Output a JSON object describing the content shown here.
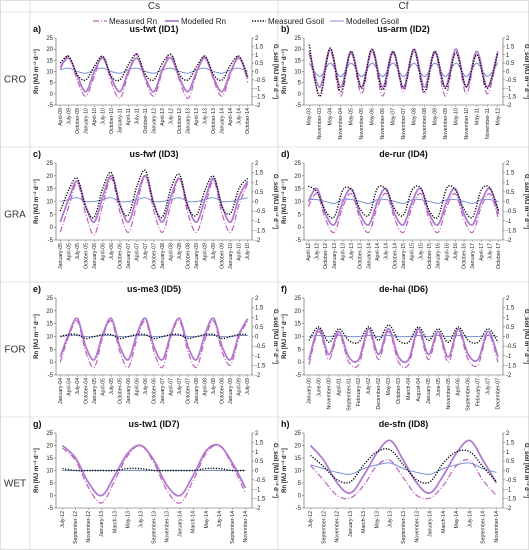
{
  "headers": {
    "cs": "Cs",
    "cf": "Cf"
  },
  "rows": [
    "CRO",
    "GRA",
    "FOR",
    "WET"
  ],
  "legend": [
    {
      "label": "Measured Rn",
      "color": "#c060c0",
      "style": "dashdot",
      "width": 1.2
    },
    {
      "label": "Modelled Rn",
      "color": "#b07cd0",
      "style": "solid",
      "width": 1.8
    },
    {
      "label": "Measured Gsoil",
      "color": "#000000",
      "style": "dotted",
      "width": 1.4
    },
    {
      "label": "Modelled Gsoil",
      "color": "#7a93d6",
      "style": "solid",
      "width": 1.0
    }
  ],
  "axes": {
    "left_label": "Rn [MJ m⁻² d⁻¹]",
    "right_label": "G_soil [MJ m⁻² d⁻¹]",
    "left_ylim": [
      -5,
      25
    ],
    "left_ticks": [
      "-5",
      "0",
      "5",
      "10",
      "15",
      "20",
      "25"
    ],
    "right_ylim": [
      -2,
      2
    ],
    "right_ticks": [
      "-2",
      "-1.5",
      "-1",
      "-0.5",
      "0",
      "0.5",
      "1",
      "1.5",
      "2"
    ]
  },
  "chart_data": [
    {
      "letter": "a)",
      "site": "us-twt (ID1)",
      "type": "line",
      "x_labels": [
        "April-09",
        "July-09",
        "October-09",
        "January-10",
        "April-10",
        "July-10",
        "October-10",
        "January-11",
        "April-11",
        "July-11",
        "October-11",
        "January-12",
        "April-12",
        "July-12",
        "October-12",
        "January-13",
        "April-13",
        "July-13",
        "October-13",
        "January-14",
        "April-14",
        "July-14",
        "October-14"
      ],
      "series": {
        "measured_rn": [
          11,
          17,
          6,
          -1,
          8,
          17,
          5,
          -2,
          9,
          18,
          6,
          -1,
          10,
          18,
          6,
          -2,
          9,
          17,
          6,
          -1,
          9,
          17,
          5
        ],
        "modelled_rn": [
          12,
          16,
          8,
          1,
          10,
          16,
          7,
          1,
          10,
          16,
          7,
          1,
          11,
          16,
          7,
          1,
          10,
          16,
          7,
          1,
          10,
          16,
          7
        ],
        "measured_gsoil": [
          0.5,
          0.9,
          -0.2,
          -0.5,
          0.3,
          0.9,
          -0.3,
          -0.5,
          0.4,
          1.0,
          -0.2,
          -0.5,
          0.5,
          1.0,
          -0.2,
          -0.5,
          0.3,
          0.9,
          -0.2,
          -0.5,
          0.4,
          0.9,
          -0.3
        ],
        "modelled_gsoil": [
          0.1,
          0.2,
          0.0,
          -0.1,
          0.1,
          0.2,
          0.0,
          -0.1,
          0.1,
          0.2,
          0.0,
          -0.1,
          0.1,
          0.2,
          0.0,
          -0.1,
          0.1,
          0.2,
          0.0,
          -0.1,
          0.1,
          0.2,
          0.0
        ]
      }
    },
    {
      "letter": "b)",
      "site": "us-arm (ID2)",
      "type": "line",
      "x_labels": [
        "May-03",
        "November-03",
        "May-04",
        "November-04",
        "May-05",
        "November-05",
        "May-06",
        "November-06",
        "May-07",
        "November-07",
        "May-08",
        "November-08",
        "May-09",
        "November-09",
        "May-10",
        "November-10",
        "May-11",
        "November-11",
        "May-12"
      ],
      "series": {
        "measured_rn": [
          18,
          0,
          19,
          -1,
          18,
          0,
          19,
          -1,
          18,
          1,
          19,
          0,
          18,
          -1,
          19,
          0,
          18,
          0,
          18
        ],
        "modelled_rn": [
          19,
          3,
          20,
          3,
          19,
          3,
          20,
          3,
          19,
          3,
          20,
          3,
          19,
          3,
          20,
          3,
          19,
          3,
          19
        ],
        "measured_gsoil": [
          1.6,
          -1.5,
          1.4,
          -1.2,
          1.2,
          -1.0,
          1.3,
          -1.1,
          1.2,
          -1.0,
          1.3,
          -1.2,
          1.2,
          -1.0,
          1.1,
          -0.9,
          1.0,
          -1.0,
          1.1
        ],
        "modelled_gsoil": [
          0.5,
          -0.3,
          0.5,
          -0.3,
          0.5,
          -0.3,
          0.5,
          -0.3,
          0.5,
          -0.3,
          0.5,
          -0.3,
          0.5,
          -0.3,
          0.5,
          -0.3,
          0.5,
          -0.3,
          0.5
        ]
      }
    },
    {
      "letter": "c)",
      "site": "us-fwf (ID3)",
      "type": "line",
      "x_labels": [
        "January-05",
        "April-05",
        "July-05",
        "October-05",
        "January-06",
        "April-06",
        "July-06",
        "October-06",
        "January-07",
        "April-07",
        "July-07",
        "October-07",
        "January-08",
        "April-08",
        "July-08",
        "October-08",
        "January-09",
        "April-09",
        "July-09",
        "October-09",
        "January-10",
        "April-10",
        "July-10"
      ],
      "series": {
        "measured_rn": [
          -2,
          8,
          17,
          5,
          -3,
          9,
          19,
          6,
          -2,
          9,
          20,
          6,
          -2,
          9,
          19,
          5,
          -2,
          8,
          18,
          5,
          -2,
          9,
          17
        ],
        "modelled_rn": [
          2,
          11,
          18,
          8,
          2,
          12,
          20,
          9,
          2,
          12,
          20,
          9,
          2,
          12,
          19,
          8,
          2,
          11,
          19,
          8,
          2,
          12,
          18
        ],
        "measured_gsoil": [
          -0.5,
          0.6,
          1.2,
          -0.3,
          -0.8,
          0.7,
          1.5,
          -0.2,
          -0.7,
          0.8,
          1.6,
          -0.2,
          -0.8,
          0.7,
          1.4,
          -0.3,
          -0.7,
          0.6,
          1.3,
          -0.3,
          -0.6,
          0.7,
          1.2
        ],
        "modelled_gsoil": [
          0.0,
          0.1,
          0.2,
          0.0,
          0.0,
          0.1,
          0.2,
          0.0,
          0.0,
          0.1,
          0.2,
          0.0,
          0.0,
          0.1,
          0.2,
          0.0,
          0.0,
          0.1,
          0.2,
          0.0,
          0.0,
          0.1,
          0.2
        ]
      }
    },
    {
      "letter": "d)",
      "site": "de-rur (ID4)",
      "type": "line",
      "x_labels": [
        "April-12",
        "July-12",
        "October-12",
        "January-13",
        "April-13",
        "July-13",
        "October-13",
        "January-14",
        "April-14",
        "July-14",
        "October-14",
        "January-15",
        "April-15",
        "July-15",
        "October-15",
        "January-16",
        "April-16",
        "July-16",
        "October-16",
        "January-17",
        "April-17",
        "July-17",
        "October-17"
      ],
      "series": {
        "measured_rn": [
          8,
          13,
          3,
          -2,
          8,
          13,
          3,
          -2,
          8,
          13,
          3,
          -2,
          8,
          13,
          3,
          -2,
          8,
          13,
          3,
          -2,
          8,
          13,
          3
        ],
        "modelled_rn": [
          10,
          15,
          5,
          1,
          10,
          15,
          5,
          1,
          10,
          15,
          5,
          1,
          10,
          15,
          5,
          1,
          10,
          15,
          5,
          1,
          10,
          15,
          5
        ],
        "measured_gsoil": [
          0.8,
          0.5,
          -0.5,
          -0.8,
          0.6,
          0.6,
          -0.4,
          -0.7,
          0.7,
          0.6,
          -0.4,
          -0.7,
          0.6,
          0.7,
          -0.5,
          -0.8,
          0.7,
          0.6,
          -0.4,
          -0.8,
          0.6,
          0.7,
          -0.5
        ],
        "modelled_gsoil": [
          0.1,
          0.1,
          0.0,
          -0.1,
          0.1,
          0.1,
          0.0,
          -0.1,
          0.1,
          0.1,
          0.0,
          -0.1,
          0.1,
          0.1,
          0.0,
          -0.1,
          0.1,
          0.1,
          0.0,
          -0.1,
          0.1,
          0.1,
          0.0
        ]
      }
    },
    {
      "letter": "e)",
      "site": "us-me3 (ID5)",
      "type": "line",
      "x_labels": [
        "January-04",
        "April-04",
        "July-04",
        "October-04",
        "January-05",
        "April-05",
        "July-05",
        "October-05",
        "January-06",
        "April-06",
        "July-06",
        "October-06",
        "January-07",
        "April-07",
        "July-07",
        "October-07",
        "January-08",
        "April-08",
        "July-08",
        "October-08",
        "January-09",
        "April-09",
        "July-09"
      ],
      "series": {
        "measured_rn": [
          0,
          10,
          16,
          4,
          -2,
          10,
          16,
          4,
          -2,
          9,
          16,
          4,
          -2,
          10,
          16,
          4,
          -2,
          9,
          16,
          4,
          -1,
          10,
          16
        ],
        "modelled_rn": [
          2,
          11,
          17,
          6,
          1,
          11,
          17,
          6,
          1,
          11,
          17,
          6,
          1,
          11,
          17,
          6,
          1,
          11,
          17,
          6,
          1,
          11,
          17
        ],
        "measured_gsoil": [
          0.0,
          0.1,
          0.1,
          -0.1,
          0.0,
          0.1,
          0.1,
          -0.1,
          0.0,
          0.1,
          0.1,
          -0.1,
          0.0,
          0.1,
          0.1,
          -0.1,
          0.0,
          0.1,
          0.1,
          -0.1,
          0.0,
          0.1,
          0.1
        ],
        "modelled_gsoil": [
          0.0,
          0.05,
          0.05,
          0.0,
          0.0,
          0.05,
          0.05,
          0.0,
          0.0,
          0.05,
          0.05,
          0.0,
          0.0,
          0.05,
          0.05,
          0.0,
          0.0,
          0.05,
          0.05,
          0.0,
          0.0,
          0.05,
          0.05
        ]
      }
    },
    {
      "letter": "f)",
      "site": "de-hai (ID6)",
      "type": "line",
      "x_labels": [
        "January-00",
        "June-00",
        "November-00",
        "April-01",
        "September-01",
        "February-02",
        "July-02",
        "December-02",
        "May-03",
        "October-03",
        "March-04",
        "August-04",
        "January-05",
        "June-05",
        "November-05",
        "April-06",
        "September-06",
        "February-07",
        "July-07",
        "December-07"
      ],
      "series": {
        "measured_rn": [
          -1,
          12,
          1,
          11,
          0,
          -1,
          12,
          1,
          12,
          0,
          -1,
          12,
          1,
          11,
          0,
          12,
          1,
          -1,
          11,
          0
        ],
        "modelled_rn": [
          1,
          13,
          3,
          12,
          2,
          1,
          13,
          3,
          13,
          2,
          1,
          13,
          3,
          12,
          2,
          13,
          3,
          1,
          12,
          2
        ],
        "measured_gsoil": [
          -0.2,
          0.5,
          -0.3,
          0.4,
          -0.2,
          -0.3,
          0.5,
          -0.2,
          0.6,
          -0.2,
          -0.3,
          0.5,
          -0.2,
          0.4,
          -0.3,
          0.5,
          -0.2,
          -0.3,
          0.4,
          -0.3
        ],
        "modelled_gsoil": [
          0.0,
          0.05,
          0.0,
          0.05,
          0.0,
          0.0,
          0.05,
          0.0,
          0.05,
          0.0,
          0.0,
          0.05,
          0.0,
          0.05,
          0.0,
          0.05,
          0.0,
          0.0,
          0.05,
          0.0
        ]
      }
    },
    {
      "letter": "g)",
      "site": "us-tw1 (ID7)",
      "type": "line",
      "x_labels": [
        "July-12",
        "September-12",
        "November-12",
        "January-13",
        "March-13",
        "May-13",
        "July-13",
        "September-13",
        "November-13",
        "January-14",
        "March-14",
        "May-14",
        "July-14",
        "September-14",
        "November-14"
      ],
      "series": {
        "measured_rn": [
          19,
          14,
          3,
          -3,
          6,
          16,
          20,
          13,
          2,
          -3,
          6,
          17,
          20,
          12,
          1
        ],
        "modelled_rn": [
          20,
          15,
          5,
          0,
          8,
          17,
          20,
          14,
          4,
          0,
          8,
          18,
          20,
          13,
          3
        ],
        "measured_gsoil": [
          0.1,
          0.0,
          0.0,
          0.0,
          0.0,
          0.1,
          0.1,
          0.0,
          0.0,
          0.0,
          0.0,
          0.1,
          0.1,
          0.0,
          0.0
        ],
        "modelled_gsoil": [
          0.0,
          0.0,
          0.0,
          0.0,
          0.0,
          0.0,
          0.0,
          0.0,
          0.0,
          0.0,
          0.0,
          0.0,
          0.0,
          0.0,
          0.0
        ]
      }
    },
    {
      "letter": "h)",
      "site": "de-sfn (ID8)",
      "type": "line",
      "x_labels": [
        "July-12",
        "September-12",
        "November-12",
        "January-13",
        "March-13",
        "May-13",
        "July-13",
        "September-13",
        "November-13",
        "January-14",
        "March-14",
        "May-14",
        "July-14",
        "September-14",
        "November-14"
      ],
      "series": {
        "measured_rn": [
          12,
          6,
          0,
          -1,
          4,
          12,
          14,
          7,
          0,
          -1,
          4,
          12,
          14,
          6,
          0
        ],
        "modelled_rn": [
          20,
          14,
          5,
          1,
          8,
          17,
          22,
          14,
          5,
          1,
          8,
          17,
          22,
          14,
          5
        ],
        "measured_gsoil": [
          0.8,
          0.2,
          -0.5,
          -0.6,
          0.3,
          1.0,
          1.1,
          0.3,
          -0.5,
          -0.6,
          0.4,
          1.0,
          1.0,
          0.2,
          -0.6
        ],
        "modelled_gsoil": [
          0.3,
          0.1,
          -0.1,
          -0.2,
          0.1,
          0.3,
          0.4,
          0.1,
          -0.1,
          -0.2,
          0.1,
          0.3,
          0.4,
          0.1,
          -0.1
        ]
      }
    }
  ]
}
